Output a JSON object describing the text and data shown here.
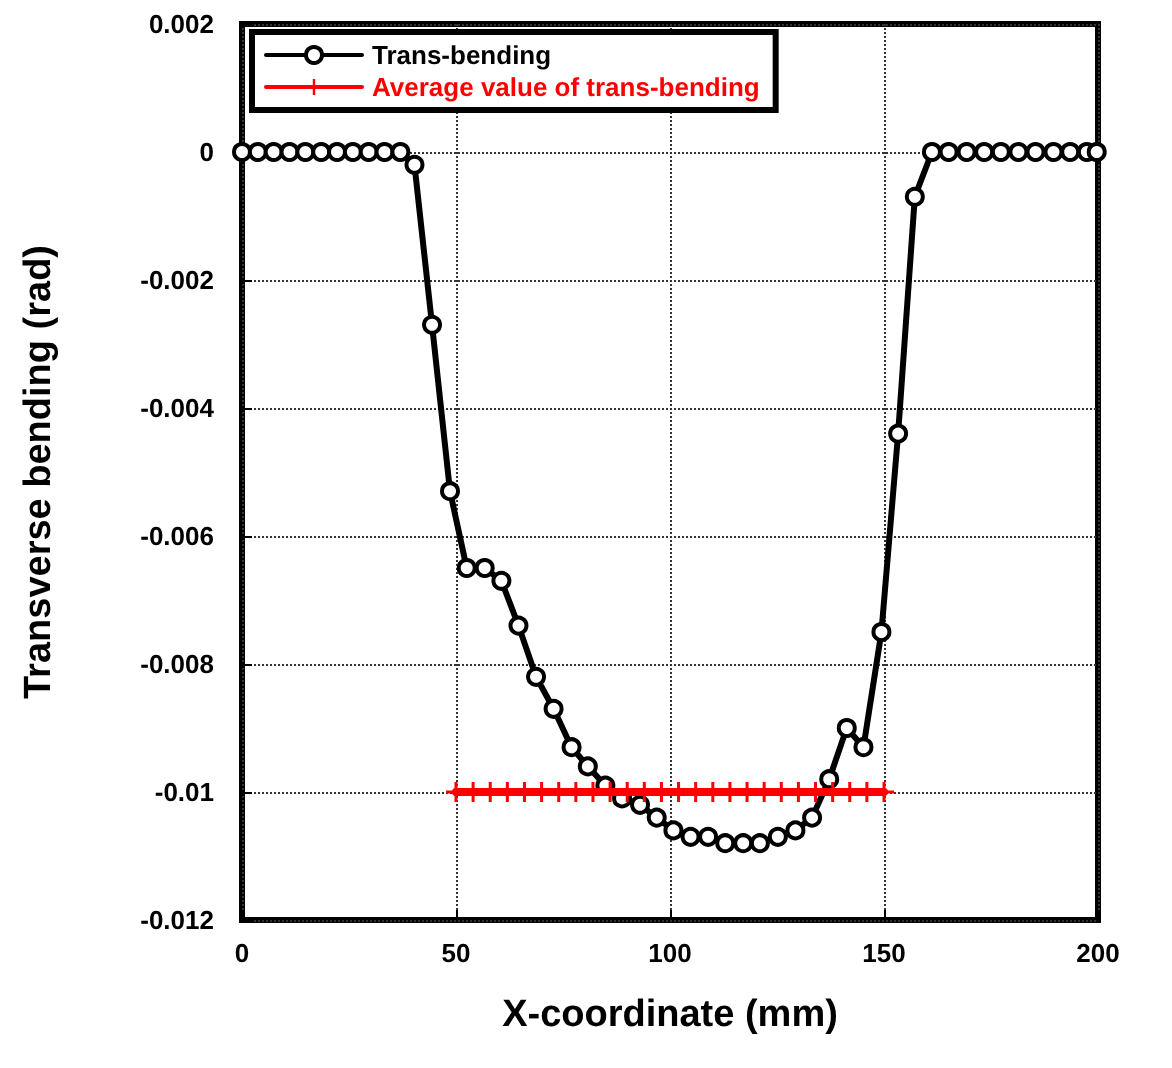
{
  "chart_data": {
    "type": "line",
    "xlabel": "X-coordinate (mm)",
    "ylabel": "Transverse bending (rad)",
    "xlim": [
      0,
      200
    ],
    "xticks": [
      0,
      50,
      100,
      150,
      200
    ],
    "ylim": [
      -0.012,
      0.002
    ],
    "yticks": [
      0.002,
      0,
      -0.002,
      -0.004,
      -0.006,
      -0.008,
      -0.01,
      -0.012
    ],
    "grid": true,
    "legend": "top left",
    "series": [
      {
        "name": "Trans-bending",
        "color": "#000000",
        "marker": "circle",
        "line_style": "solid",
        "x": [
          0,
          3.7,
          7.4,
          11.1,
          14.8,
          18.5,
          22.2,
          25.9,
          29.6,
          33.3,
          37.0,
          40.3,
          44.4,
          48.6,
          52.5,
          56.7,
          60.6,
          64.6,
          68.7,
          72.8,
          77.0,
          80.8,
          84.9,
          88.8,
          93.0,
          96.9,
          100.8,
          104.8,
          108.9,
          112.9,
          117.1,
          121.0,
          125.2,
          129.3,
          133.2,
          137.2,
          141.3,
          145.2,
          149.4,
          153.3,
          157.2,
          161.2,
          165.1,
          169.3,
          173.4,
          177.3,
          181.4,
          185.4,
          189.6,
          193.5,
          197.4,
          199.7
        ],
        "values": [
          0,
          0,
          0,
          0,
          0,
          0,
          0,
          0,
          0,
          0,
          0,
          -0.0002,
          -0.0027,
          -0.0053,
          -0.0065,
          -0.0065,
          -0.0067,
          -0.0074,
          -0.0082,
          -0.0087,
          -0.0093,
          -0.0096,
          -0.0099,
          -0.0101,
          -0.0102,
          -0.0104,
          -0.0106,
          -0.0107,
          -0.0107,
          -0.0108,
          -0.0108,
          -0.0108,
          -0.0107,
          -0.0106,
          -0.0104,
          -0.0098,
          -0.009,
          -0.0093,
          -0.0075,
          -0.0044,
          -0.0007,
          0,
          0,
          0,
          0,
          0,
          0,
          0,
          0,
          0,
          0,
          0
        ]
      },
      {
        "name": "Average value of trans-bending",
        "color": "#ff0000",
        "marker": "cross",
        "line_style": "solid",
        "x": [
          50,
          54,
          58,
          62,
          66,
          70,
          74,
          78,
          82,
          86,
          90,
          94,
          98,
          102,
          106,
          110,
          114,
          118,
          122,
          126,
          130,
          134,
          138,
          142,
          146,
          150
        ],
        "values": [
          -0.01,
          -0.01,
          -0.01,
          -0.01,
          -0.01,
          -0.01,
          -0.01,
          -0.01,
          -0.01,
          -0.01,
          -0.01,
          -0.01,
          -0.01,
          -0.01,
          -0.01,
          -0.01,
          -0.01,
          -0.01,
          -0.01,
          -0.01,
          -0.01,
          -0.01,
          -0.01,
          -0.01,
          -0.01,
          -0.01
        ]
      }
    ]
  }
}
